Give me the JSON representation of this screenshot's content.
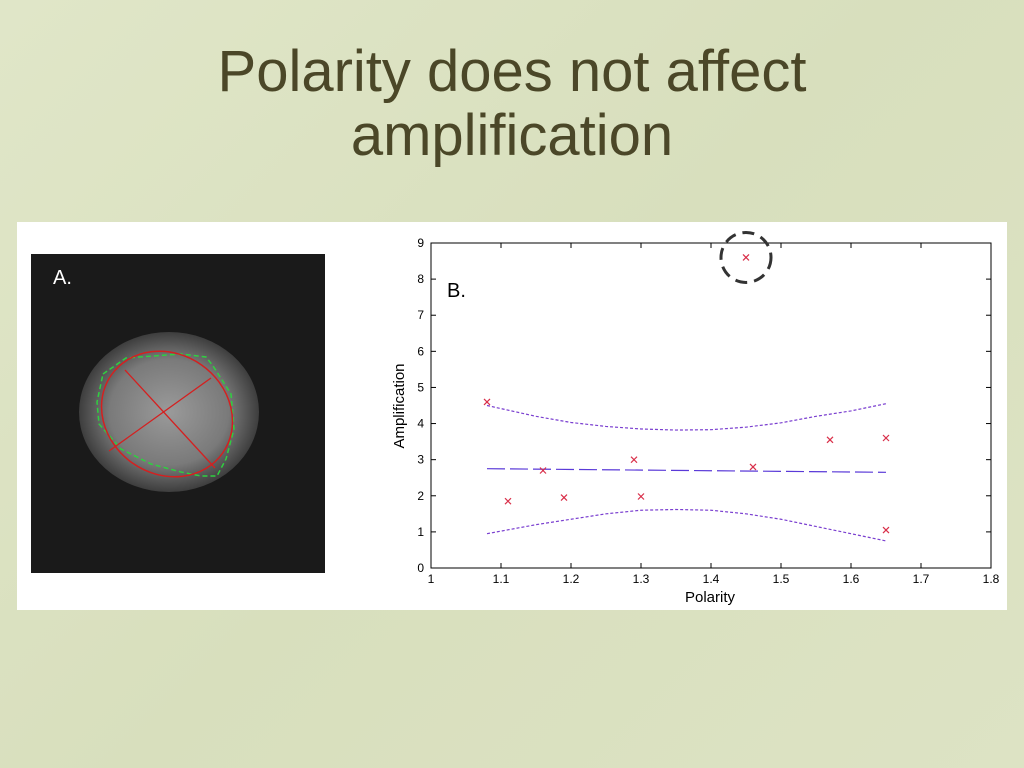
{
  "slide": {
    "title_line1": "Polarity does not affect",
    "title_line2": "amplification"
  },
  "panelA": {
    "label": "A."
  },
  "panelB": {
    "label": "B."
  },
  "chart_data": {
    "type": "scatter",
    "xlabel": "Polarity",
    "ylabel": "Amplification",
    "xlim": [
      1,
      1.8
    ],
    "ylim": [
      0,
      9
    ],
    "xticks": [
      "1",
      "1.1",
      "1.2",
      "1.3",
      "1.4",
      "1.5",
      "1.6",
      "1.7",
      "1.8"
    ],
    "yticks": [
      "0",
      "1",
      "2",
      "3",
      "4",
      "5",
      "6",
      "7",
      "8",
      "9"
    ],
    "points": [
      {
        "x": 1.08,
        "y": 4.6
      },
      {
        "x": 1.11,
        "y": 1.85
      },
      {
        "x": 1.16,
        "y": 2.7
      },
      {
        "x": 1.19,
        "y": 1.95
      },
      {
        "x": 1.29,
        "y": 3.0
      },
      {
        "x": 1.3,
        "y": 1.98
      },
      {
        "x": 1.45,
        "y": 8.6
      },
      {
        "x": 1.46,
        "y": 2.8
      },
      {
        "x": 1.57,
        "y": 3.55
      },
      {
        "x": 1.65,
        "y": 3.6
      },
      {
        "x": 1.65,
        "y": 1.05
      }
    ],
    "circled_point": {
      "x": 1.45,
      "y": 8.6
    },
    "fit_line": {
      "x": [
        1.08,
        1.65
      ],
      "y": [
        2.75,
        2.65
      ]
    },
    "upper_band": {
      "x": [
        1.08,
        1.15,
        1.2,
        1.25,
        1.3,
        1.35,
        1.4,
        1.45,
        1.5,
        1.55,
        1.6,
        1.65
      ],
      "y": [
        4.5,
        4.2,
        4.03,
        3.92,
        3.85,
        3.82,
        3.83,
        3.9,
        4.02,
        4.2,
        4.35,
        4.55
      ]
    },
    "lower_band": {
      "x": [
        1.08,
        1.15,
        1.2,
        1.25,
        1.3,
        1.35,
        1.4,
        1.45,
        1.5,
        1.55,
        1.6,
        1.65
      ],
      "y": [
        0.95,
        1.2,
        1.35,
        1.5,
        1.6,
        1.62,
        1.6,
        1.5,
        1.35,
        1.15,
        0.95,
        0.75
      ]
    },
    "colors": {
      "points": "#d9304a",
      "fit": "#5a3ad8",
      "band": "#7a3fd0",
      "circle": "#333333"
    }
  }
}
